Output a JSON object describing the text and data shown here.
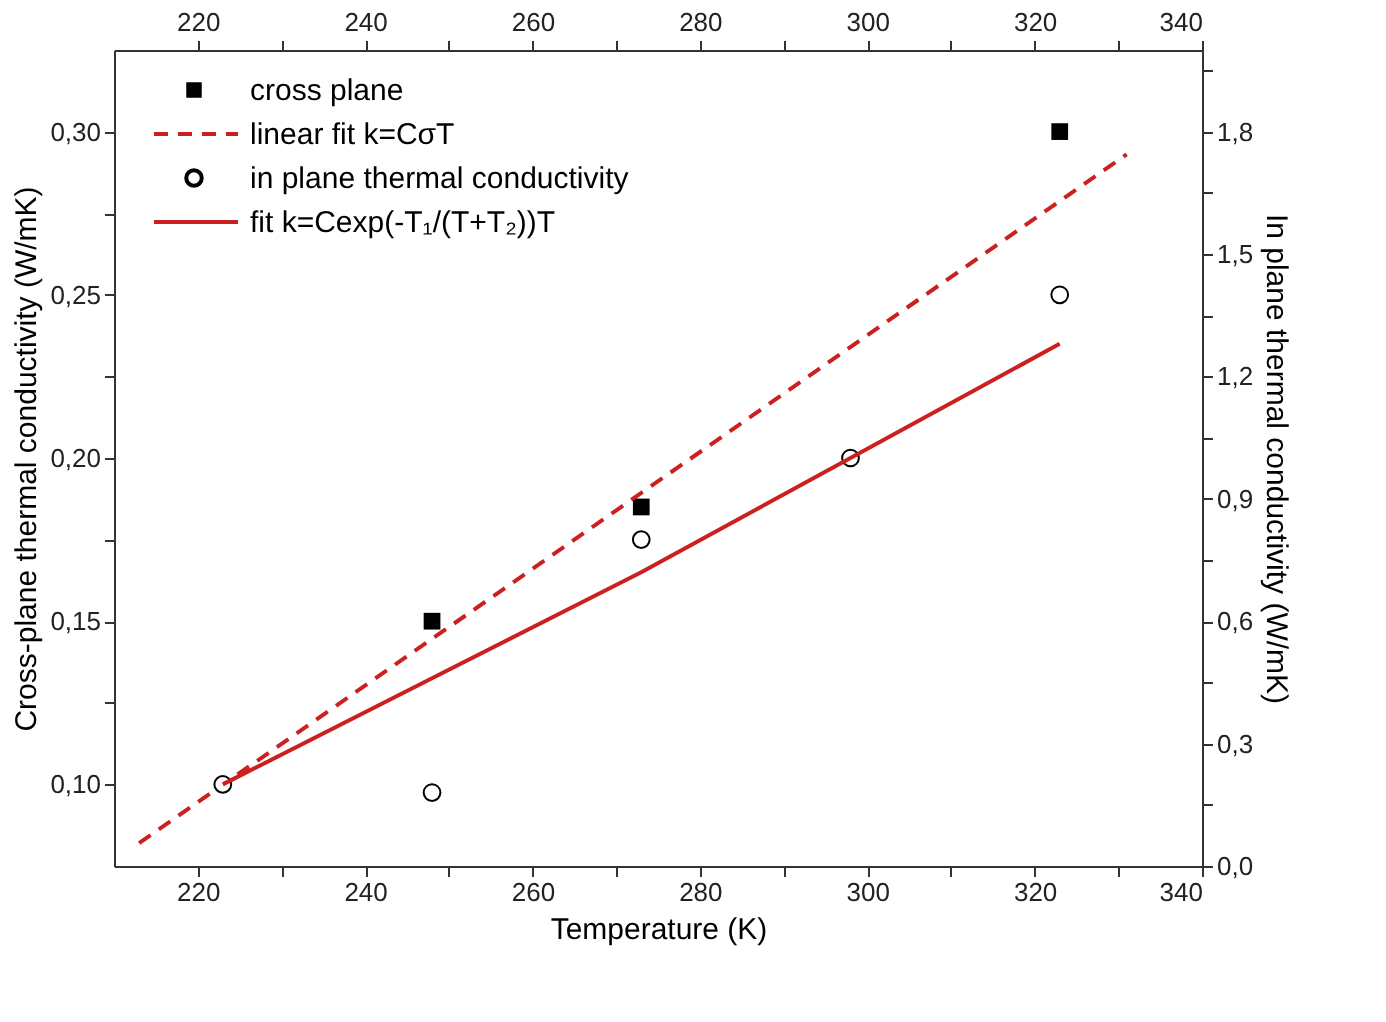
{
  "chart_data": {
    "type": "scatter",
    "xlabel": "Temperature (K)",
    "ylabel": "Cross-plane thermal conductivity (W/mK)",
    "y2label": "In plane thermal conductivity (W/mK)",
    "xlim": [
      210,
      340
    ],
    "xticks": [
      220,
      {
        "value": 230,
        "label": null
      },
      240,
      {
        "value": 250,
        "label": null
      },
      260,
      {
        "value": 270,
        "label": null
      },
      280,
      {
        "value": 290,
        "label": null
      },
      300,
      {
        "value": 310,
        "label": null
      },
      320,
      {
        "value": 330,
        "label": null
      },
      340
    ],
    "x2lim": [
      210,
      340
    ],
    "x2ticks": [
      220,
      {
        "value": 230,
        "label": null
      },
      240,
      {
        "value": 250,
        "label": null
      },
      260,
      {
        "value": 270,
        "label": null
      },
      280,
      {
        "value": 290,
        "label": null
      },
      300,
      {
        "value": 310,
        "label": null
      },
      320,
      {
        "value": 330,
        "label": null
      },
      340
    ],
    "ylim": [
      0.075,
      0.325
    ],
    "yticks": [
      {
        "value": 0.1,
        "label": "0,10"
      },
      {
        "value": 0.125,
        "label": null
      },
      {
        "value": 0.15,
        "label": "0,15"
      },
      {
        "value": 0.175,
        "label": null
      },
      {
        "value": 0.2,
        "label": "0,20"
      },
      {
        "value": 0.225,
        "label": null
      },
      {
        "value": 0.25,
        "label": "0,25"
      },
      {
        "value": 0.275,
        "label": null
      },
      {
        "value": 0.3,
        "label": "0,30"
      }
    ],
    "y2lim": [
      0,
      2.0
    ],
    "y2ticks": [
      {
        "value": 0,
        "label": "0,0"
      },
      {
        "value": 0.15,
        "label": null
      },
      {
        "value": 0.3,
        "label": "0,3"
      },
      {
        "value": 0.45,
        "label": null
      },
      {
        "value": 0.6,
        "label": "0,6"
      },
      {
        "value": 0.75,
        "label": null
      },
      {
        "value": 0.9,
        "label": "0,9"
      },
      {
        "value": 1.05,
        "label": null
      },
      {
        "value": 1.2,
        "label": "1,2"
      },
      {
        "value": 1.35,
        "label": null
      },
      {
        "value": 1.5,
        "label": "1,5"
      },
      {
        "value": 1.65,
        "label": null
      },
      {
        "value": 1.8,
        "label": "1,8"
      },
      {
        "value": 1.95,
        "label": null
      }
    ],
    "grid": false,
    "legend": "top left",
    "series": [
      {
        "name": "cross plane",
        "marker": "square",
        "color": "#000000",
        "x": [
          248,
          273,
          323
        ],
        "values": [
          0.15,
          0.185,
          0.3
        ]
      },
      {
        "name": "linear fit k=CσT",
        "type": "line",
        "line_style": "dashed",
        "marker": "none",
        "color": "#cc1f1f",
        "x": [
          213,
          331
        ],
        "values": [
          0.082,
          0.293
        ]
      },
      {
        "name": "in plane thermal conductivity",
        "marker": "circle",
        "color": "#000000",
        "axis": "y2",
        "x": [
          223,
          248,
          273,
          298,
          323
        ],
        "values": [
          0.2,
          0.18,
          0.8,
          1.0,
          1.4
        ]
      },
      {
        "name": "fit k=Cexp(-T₁/(T+T₂))T",
        "type": "line",
        "line_style": "solid",
        "marker": "none",
        "color": "#cc1f1f",
        "axis": "y2",
        "x": [
          223,
          248,
          273,
          298,
          323
        ],
        "values": [
          0.2,
          0.46,
          0.72,
          1.0,
          1.28
        ]
      }
    ]
  }
}
